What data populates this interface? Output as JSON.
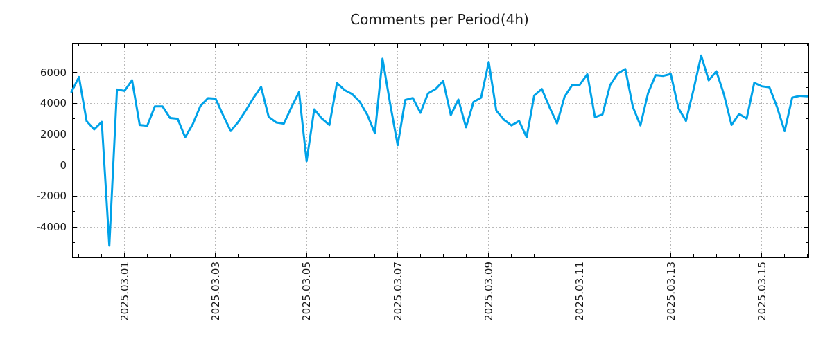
{
  "chart_data": {
    "type": "line",
    "title": "Comments per Period(4h)",
    "series_name": "comments-per-4h",
    "series_color": "#00a2e8",
    "grid": true,
    "legend": "none",
    "background": "#ffffff",
    "x_tick_labels": [
      "2025.03.01",
      "2025.03.03",
      "2025.03.05",
      "2025.03.07",
      "2025.03.09",
      "2025.03.11",
      "2025.03.13",
      "2025.03.15"
    ],
    "y_ticks": [
      -4000,
      -2000,
      0,
      2000,
      4000,
      6000
    ],
    "y_minor_ticks": [
      -5000,
      -3000,
      -1000,
      1000,
      3000,
      5000,
      7000
    ],
    "ylim": [
      -5920,
      7860
    ],
    "points_per_4h_step": 1,
    "first_labeled_tick_point_index": 7,
    "points_between_labeled_ticks": 12,
    "minor_x_tick_every_points": 3,
    "values": [
      4730,
      5700,
      2850,
      2310,
      2800,
      -5200,
      4890,
      4800,
      5490,
      2600,
      2550,
      3800,
      3800,
      3050,
      3000,
      1800,
      2660,
      3820,
      4330,
      4300,
      3220,
      2210,
      2800,
      3550,
      4350,
      5060,
      3120,
      2760,
      2690,
      3750,
      4730,
      260,
      3610,
      3020,
      2600,
      5310,
      4850,
      4600,
      4100,
      3250,
      2060,
      6880,
      4000,
      1290,
      4220,
      4340,
      3380,
      4640,
      4920,
      5440,
      3240,
      4240,
      2450,
      4090,
      4360,
      6670,
      3530,
      2940,
      2570,
      2860,
      1800,
      4500,
      4920,
      3760,
      2700,
      4430,
      5180,
      5200,
      5880,
      3100,
      3280,
      5180,
      5920,
      6220,
      3760,
      2570,
      4650,
      5820,
      5770,
      5890,
      3680,
      2860,
      4900,
      7085,
      5480,
      6070,
      4580,
      2600,
      3310,
      3015,
      5325,
      5100,
      5030,
      3760,
      2200,
      4360,
      4480,
      4450
    ]
  }
}
